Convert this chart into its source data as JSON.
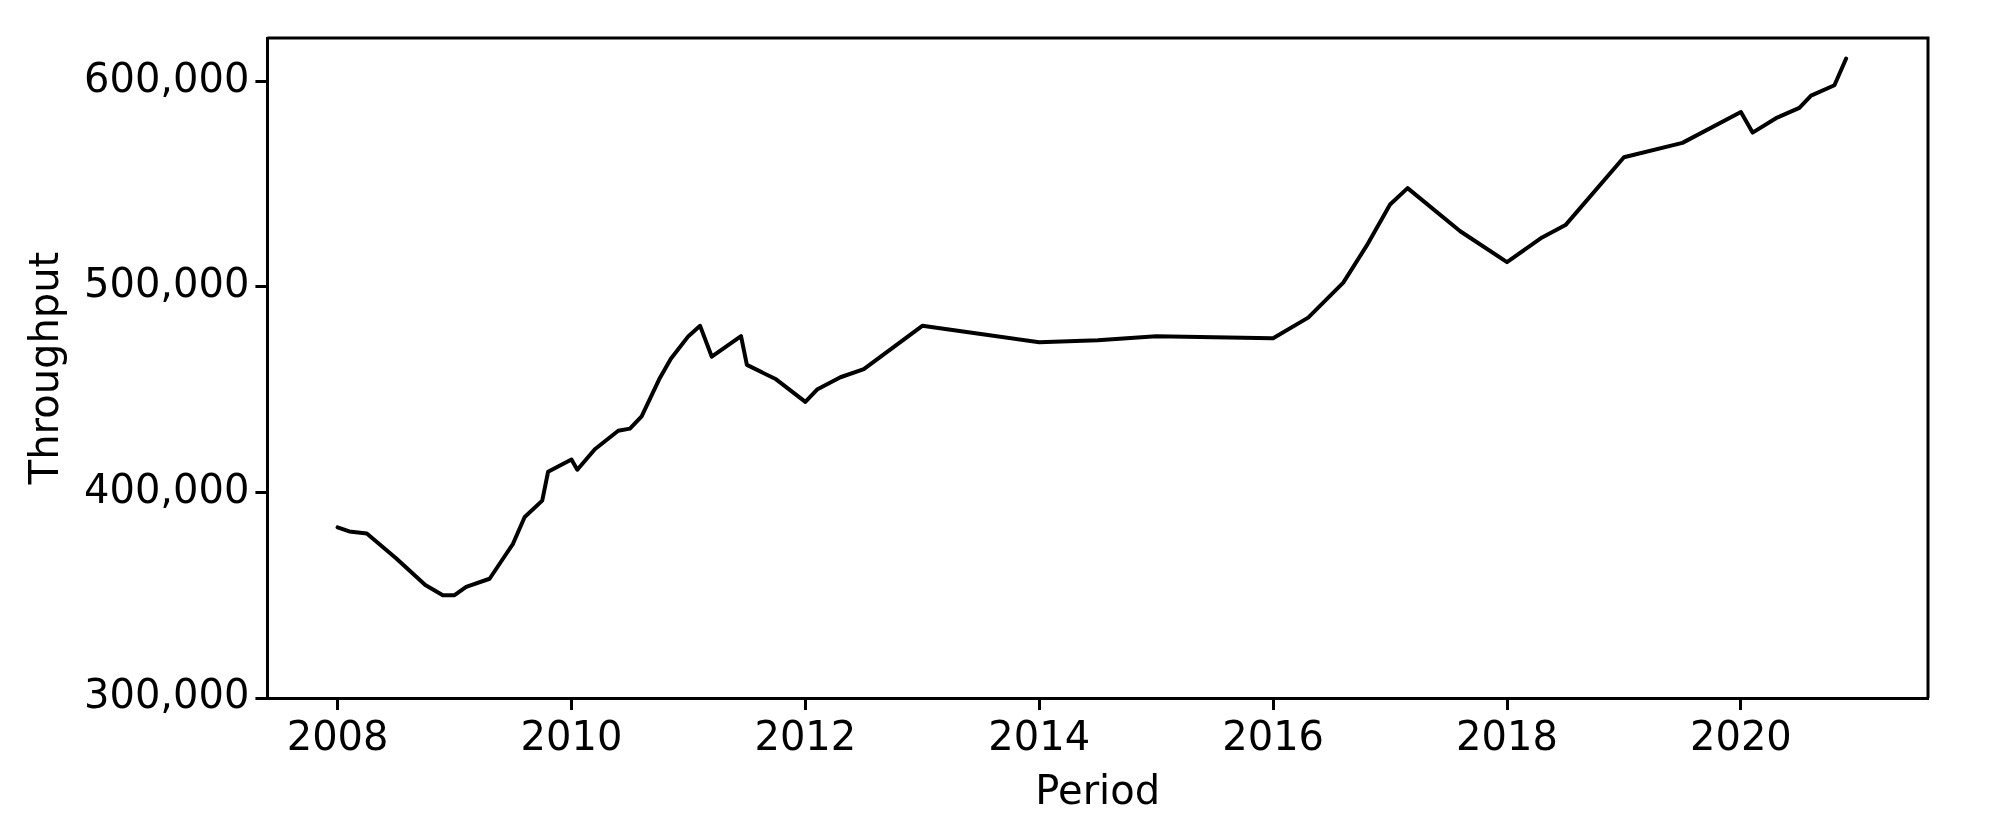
{
  "chart_data": {
    "type": "line",
    "xlabel": "Period",
    "ylabel": "Throughput",
    "x": [
      2008.0,
      2008.1,
      2008.25,
      2008.5,
      2008.75,
      2008.9,
      2009.0,
      2009.1,
      2009.3,
      2009.5,
      2009.6,
      2009.75,
      2009.8,
      2010.0,
      2010.05,
      2010.2,
      2010.4,
      2010.5,
      2010.6,
      2010.75,
      2010.85,
      2011.0,
      2011.1,
      2011.2,
      2011.45,
      2011.5,
      2011.75,
      2012.0,
      2012.1,
      2012.3,
      2012.5,
      2013.0,
      2013.5,
      2014.0,
      2014.5,
      2015.0,
      2016.0,
      2016.3,
      2016.6,
      2016.8,
      2017.0,
      2017.15,
      2017.6,
      2018.0,
      2018.3,
      2018.5,
      2019.0,
      2019.5,
      2020.0,
      2020.1,
      2020.3,
      2020.5,
      2020.6,
      2020.8,
      2020.9
    ],
    "series": [
      {
        "color": "#000000",
        "values": [
          383000,
          381000,
          380000,
          368000,
          355000,
          350000,
          350000,
          354000,
          358000,
          375000,
          388000,
          396000,
          410000,
          416000,
          411000,
          421000,
          430000,
          431000,
          437000,
          455000,
          465000,
          476000,
          481000,
          466000,
          476000,
          462000,
          455000,
          444000,
          450000,
          456000,
          460000,
          481000,
          477000,
          473000,
          474000,
          476000,
          475000,
          485000,
          502000,
          520000,
          540000,
          548000,
          527000,
          512000,
          524000,
          530000,
          563000,
          570000,
          585000,
          575000,
          582000,
          587000,
          593000,
          598000,
          611000
        ]
      }
    ],
    "xlim": [
      2007.4,
      2021.6
    ],
    "xticks": [
      2008,
      2010,
      2012,
      2014,
      2016,
      2018,
      2020
    ],
    "ylim": [
      300000,
      621000
    ],
    "yticks": [
      {
        "value": 300000,
        "label": "300,000"
      },
      {
        "value": 400000,
        "label": "400,000"
      },
      {
        "value": 500000,
        "label": "500,000"
      },
      {
        "value": 600000,
        "label": "600,000"
      }
    ],
    "grid": false,
    "legend": false,
    "marker": "none",
    "line_style": "solid"
  }
}
